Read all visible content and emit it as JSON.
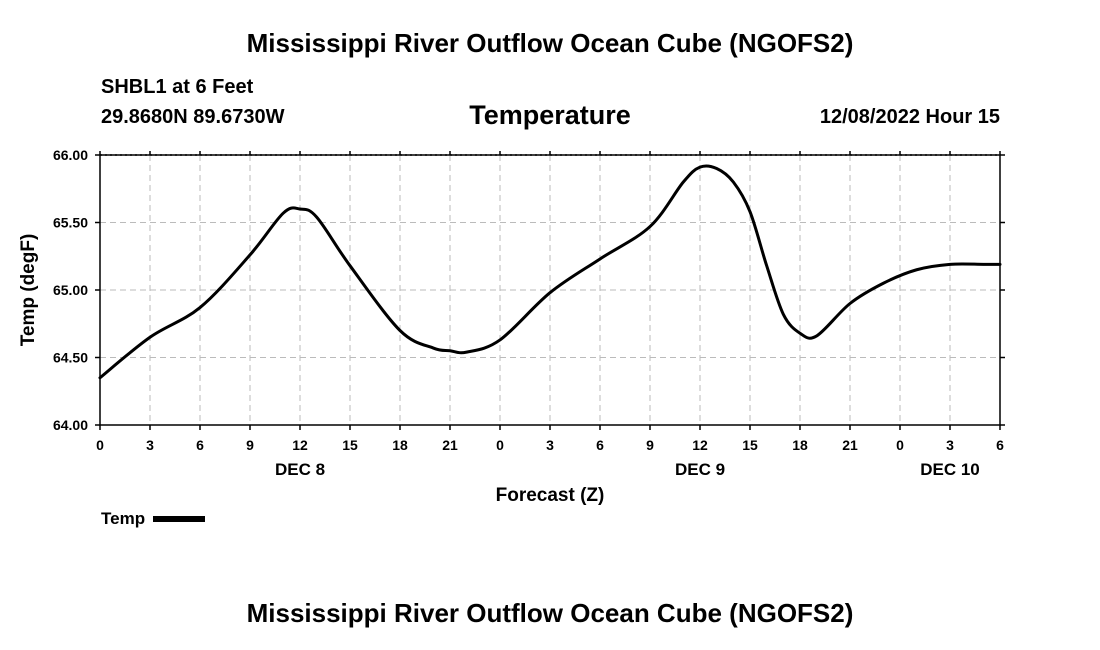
{
  "header": {
    "title": "Mississippi River Outflow Ocean Cube (NGOFS2)",
    "station": "SHBL1 at 6 Feet",
    "latlon": "29.8680N  89.6730W",
    "timestamp": "12/08/2022 Hour 15",
    "footer_title": "Mississippi River Outflow Ocean Cube (NGOFS2)"
  },
  "legend": {
    "label": "Temp"
  },
  "colors": {
    "line": "#000000",
    "grid": "#bbbbbb"
  },
  "chart_data": {
    "type": "line",
    "title": "Temperature",
    "xlabel": "Forecast (Z)",
    "ylabel": "Temp (degF)",
    "ylim": [
      64.0,
      66.0
    ],
    "xlim": [
      0,
      54
    ],
    "yticks": [
      "64.00",
      "64.50",
      "65.00",
      "65.50",
      "66.00"
    ],
    "xticks": [
      "0",
      "3",
      "6",
      "9",
      "12",
      "15",
      "18",
      "21",
      "0",
      "3",
      "6",
      "9",
      "12",
      "15",
      "18",
      "21",
      "0",
      "3",
      "6"
    ],
    "date_labels": [
      {
        "label": "DEC 8",
        "hour": 12
      },
      {
        "label": "DEC 9",
        "hour": 36
      },
      {
        "label": "DEC 10",
        "hour": 51
      }
    ],
    "grid": true,
    "series": [
      {
        "name": "Temp",
        "x": [
          0,
          3,
          6,
          9,
          11,
          12,
          13,
          15,
          18,
          20,
          21,
          22,
          24,
          27,
          30,
          33,
          35,
          36,
          37,
          38,
          39,
          40,
          41,
          42,
          43,
          45,
          47,
          49,
          51,
          53,
          54
        ],
        "values": [
          64.35,
          64.65,
          64.87,
          65.26,
          65.57,
          65.6,
          65.54,
          65.18,
          64.7,
          64.57,
          64.55,
          64.54,
          64.63,
          64.98,
          65.23,
          65.47,
          65.8,
          65.91,
          65.9,
          65.8,
          65.58,
          65.18,
          64.82,
          64.68,
          64.66,
          64.9,
          65.05,
          65.15,
          65.19,
          65.19,
          65.19
        ]
      }
    ]
  }
}
